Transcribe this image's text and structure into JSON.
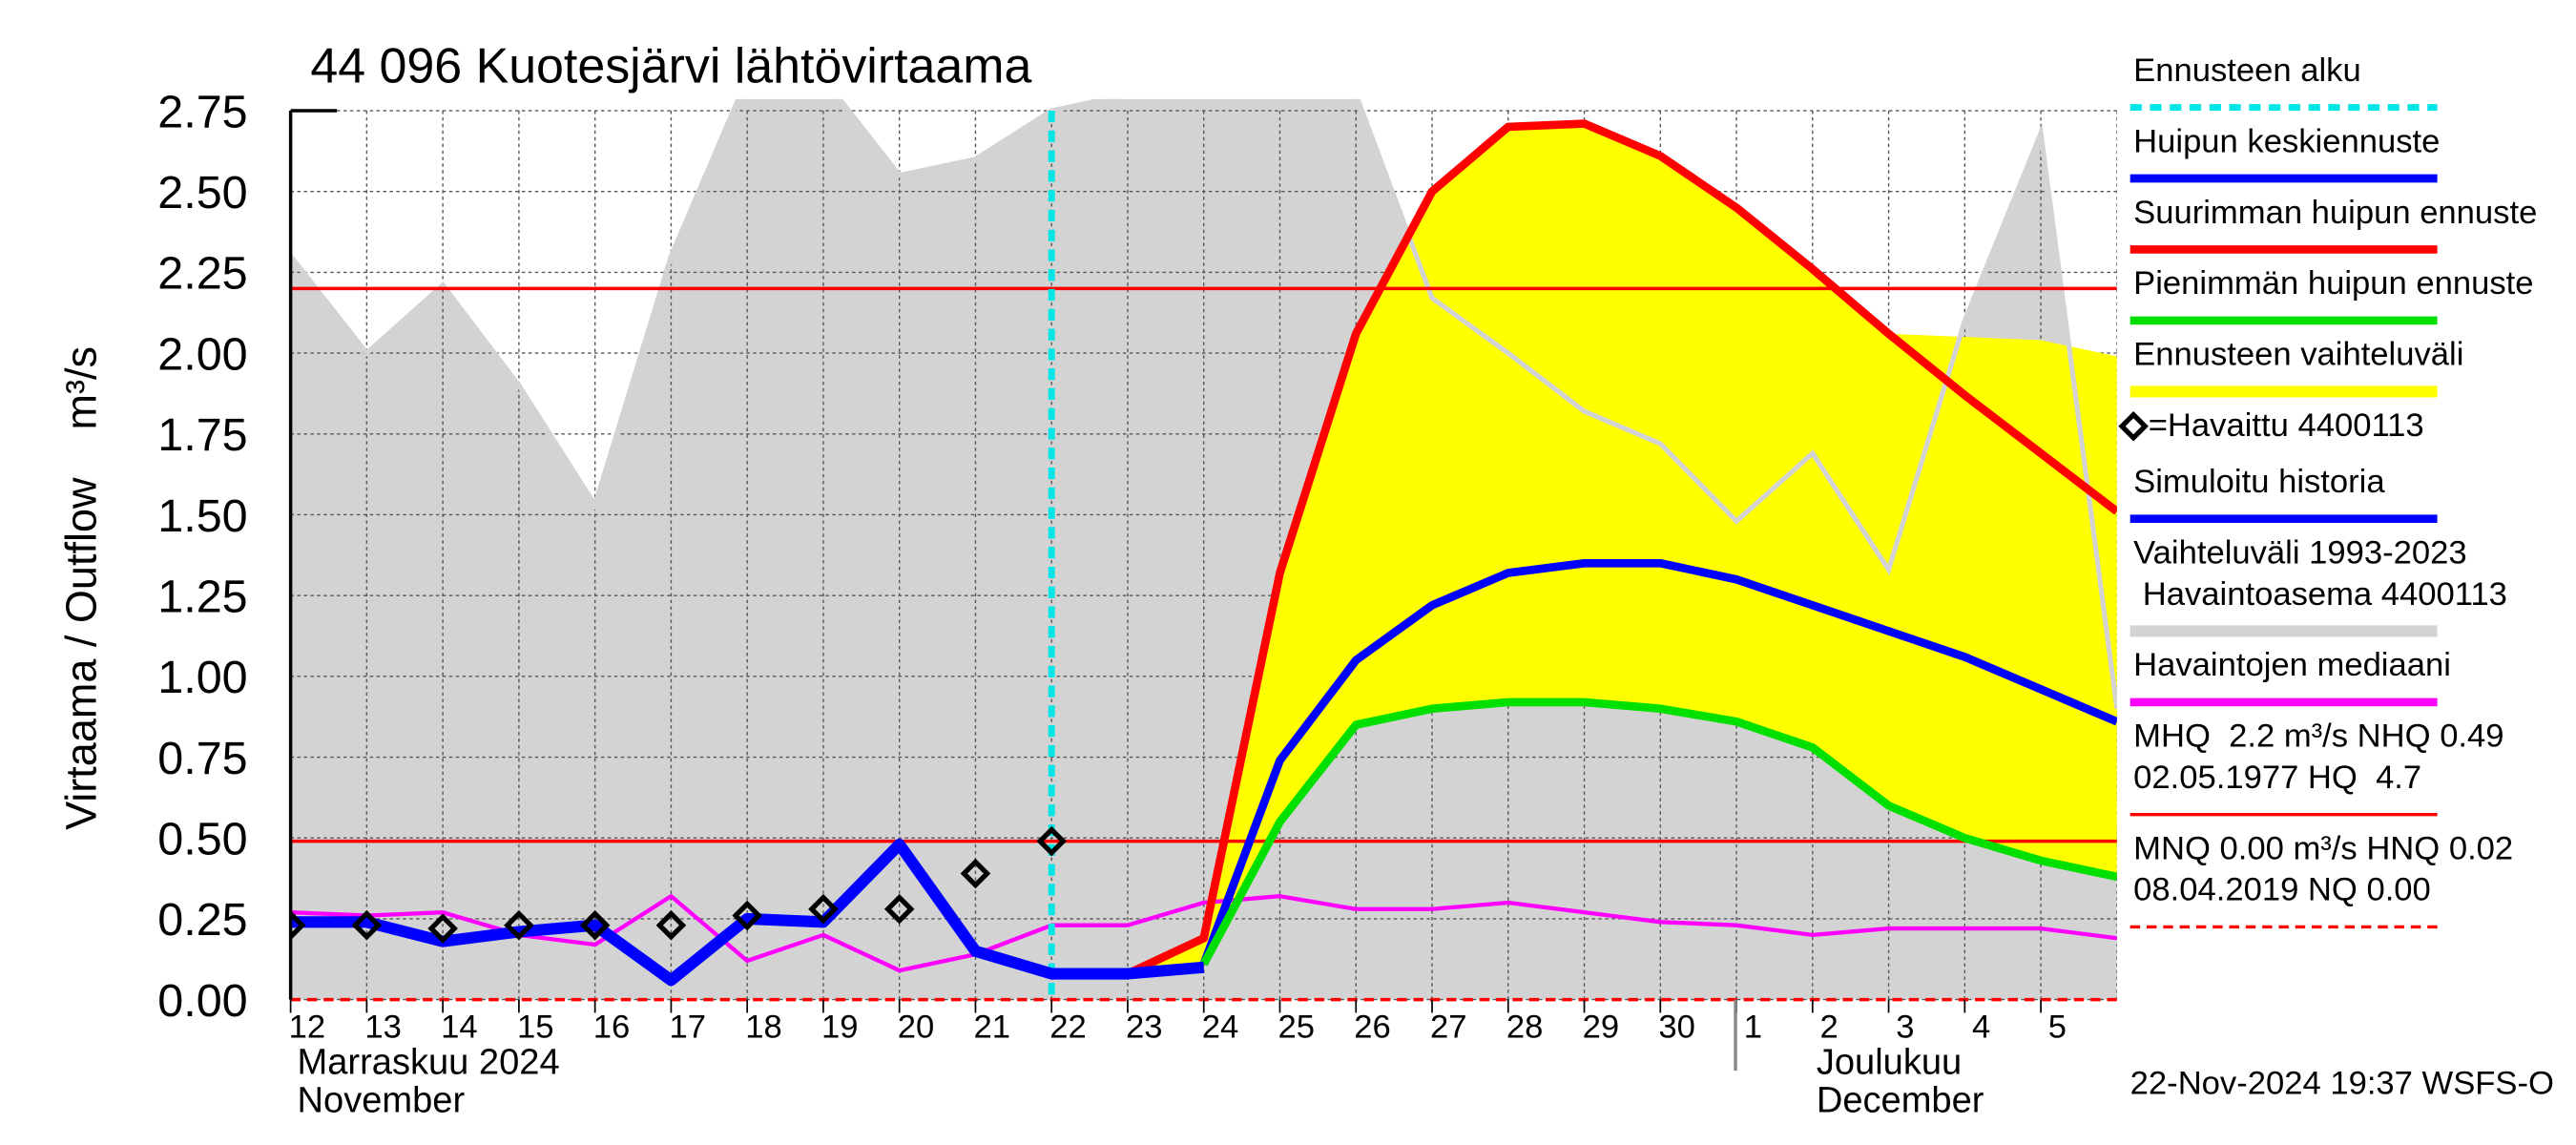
{
  "chart_data": {
    "type": "hydrograph",
    "title": "44 096 Kuotesjärvi lähtövirtaama",
    "y_label": "Virtaama / Outflow    m³/s",
    "ylim": [
      0,
      2.75
    ],
    "yticks": [
      {
        "value": 0,
        "label": "0.00"
      },
      {
        "value": 0.25,
        "label": "0.25"
      },
      {
        "value": 0.5,
        "label": "0.50"
      },
      {
        "value": 0.75,
        "label": "0.75"
      },
      {
        "value": 1,
        "label": "1.00"
      },
      {
        "value": 1.25,
        "label": "1.25"
      },
      {
        "value": 1.5,
        "label": "1.50"
      },
      {
        "value": 1.75,
        "label": "1.75"
      },
      {
        "value": 2,
        "label": "2.00"
      },
      {
        "value": 2.25,
        "label": "2.25"
      },
      {
        "value": 2.5,
        "label": "2.50"
      },
      {
        "value": 2.75,
        "label": "2.75"
      }
    ],
    "xlim": [
      0,
      24
    ],
    "xticks": [
      {
        "value": 0,
        "label": "12"
      },
      {
        "value": 1,
        "label": "13"
      },
      {
        "value": 2,
        "label": "14"
      },
      {
        "value": 3,
        "label": "15"
      },
      {
        "value": 4,
        "label": "16"
      },
      {
        "value": 5,
        "label": "17"
      },
      {
        "value": 6,
        "label": "18"
      },
      {
        "value": 7,
        "label": "19"
      },
      {
        "value": 8,
        "label": "20"
      },
      {
        "value": 9,
        "label": "21"
      },
      {
        "value": 10,
        "label": "22"
      },
      {
        "value": 11,
        "label": "23"
      },
      {
        "value": 12,
        "label": "24"
      },
      {
        "value": 13,
        "label": "25"
      },
      {
        "value": 14,
        "label": "26"
      },
      {
        "value": 15,
        "label": "27"
      },
      {
        "value": 16,
        "label": "28"
      },
      {
        "value": 17,
        "label": "29"
      },
      {
        "value": 18,
        "label": "30"
      },
      {
        "value": 19,
        "label": "1"
      },
      {
        "value": 20,
        "label": "2"
      },
      {
        "value": 21,
        "label": "3"
      },
      {
        "value": 22,
        "label": "4"
      },
      {
        "value": 23,
        "label": "5"
      }
    ],
    "grid": true,
    "months": [
      [
        "Marraskuu 2024",
        "November"
      ],
      [
        "Joulukuu",
        "December"
      ]
    ],
    "footer": "22-Nov-2024 19:37 WSFS-O",
    "series": [
      {
        "name": "Ennusteen alku",
        "color": "#00e5e5",
        "style": "vline",
        "x": 10
      },
      {
        "name": "Huipun keskiennuste",
        "color": "#0000ff",
        "style": "line",
        "width": 5,
        "x": [
          12,
          13,
          14,
          15,
          16,
          17,
          18,
          19,
          20,
          21,
          22,
          23,
          24
        ],
        "values": [
          0.11,
          0.74,
          1.05,
          1.22,
          1.32,
          1.35,
          1.35,
          1.3,
          1.22,
          1.14,
          1.06,
          0.96,
          0.86
        ]
      },
      {
        "name": "Suurimman huipun ennuste",
        "color": "#ff0000",
        "style": "line",
        "width": 5,
        "x": [
          11,
          12,
          13,
          14,
          15,
          16,
          17,
          18,
          19,
          20,
          21,
          22,
          23,
          24
        ],
        "values": [
          0.08,
          0.19,
          1.32,
          2.06,
          2.5,
          2.7,
          2.71,
          2.61,
          2.45,
          2.26,
          2.06,
          1.87,
          1.69,
          1.51
        ]
      },
      {
        "name": "Pienimmän huipun ennuste",
        "color": "#00e000",
        "style": "line",
        "width": 5,
        "x": [
          12,
          13,
          14,
          15,
          16,
          17,
          18,
          19,
          20,
          21,
          22,
          23,
          24
        ],
        "values": [
          0.11,
          0.55,
          0.85,
          0.9,
          0.92,
          0.92,
          0.9,
          0.86,
          0.78,
          0.6,
          0.5,
          0.43,
          0.38
        ]
      },
      {
        "name": "Ennusteen vaihteluväli",
        "color": "#ffff00",
        "style": "range",
        "x": [
          11,
          12,
          13,
          14,
          15,
          16,
          17,
          18,
          19,
          20,
          21,
          22,
          23,
          24
        ],
        "upper": [
          0.08,
          0.19,
          1.32,
          2.06,
          2.5,
          2.7,
          2.71,
          2.61,
          2.45,
          2.26,
          2.06,
          2.05,
          2.04,
          1.99
        ],
        "lower": [
          0.08,
          0.11,
          0.55,
          0.85,
          0.9,
          0.92,
          0.92,
          0.9,
          0.86,
          0.78,
          0.6,
          0.5,
          0.43,
          0.38
        ]
      },
      {
        "name": "=Havaittu 4400113",
        "color": "#000000",
        "style": "markers",
        "x": [
          0,
          1,
          2,
          3,
          4,
          5,
          6,
          7,
          8,
          9,
          10
        ],
        "values": [
          0.23,
          0.23,
          0.22,
          0.23,
          0.23,
          0.23,
          0.26,
          0.28,
          0.28,
          0.39,
          0.49
        ]
      },
      {
        "name": "Simuloitu historia",
        "color": "#0000ff",
        "style": "line",
        "width": 7,
        "x": [
          0,
          1,
          2,
          3,
          4,
          5,
          6,
          7,
          8,
          9,
          10,
          11,
          12
        ],
        "values": [
          0.24,
          0.24,
          0.18,
          0.21,
          0.23,
          0.06,
          0.25,
          0.24,
          0.48,
          0.15,
          0.08,
          0.08,
          0.1
        ]
      },
      {
        "name": [
          "Vaihteluväli 1993-2023",
          " Havaintoasema 4400113"
        ],
        "color": "#d3d3d3",
        "style": "area",
        "x": [
          0,
          1,
          2,
          3,
          4,
          5,
          6,
          7,
          8,
          9,
          10,
          11,
          12,
          13,
          14,
          15,
          16,
          17,
          18,
          19,
          20,
          21,
          22,
          23,
          24
        ],
        "values": [
          2.3,
          2.0,
          2.21,
          1.9,
          1.53,
          2.3,
          2.85,
          2.85,
          2.55,
          2.6,
          2.75,
          2.8,
          2.8,
          2.8,
          2.8,
          2.17,
          2.0,
          1.82,
          1.72,
          1.48,
          1.69,
          1.33,
          2.1,
          2.68,
          0.9
        ]
      },
      {
        "name": "Havaintojen mediaani",
        "color": "#ff00ff",
        "style": "line",
        "width": 2.5,
        "x": [
          0,
          1,
          2,
          3,
          4,
          5,
          6,
          7,
          8,
          9,
          10,
          11,
          12,
          13,
          14,
          15,
          16,
          17,
          18,
          19,
          20,
          21,
          22,
          23,
          24
        ],
        "values": [
          0.27,
          0.26,
          0.27,
          0.2,
          0.17,
          0.32,
          0.12,
          0.2,
          0.09,
          0.14,
          0.23,
          0.23,
          0.3,
          0.32,
          0.28,
          0.28,
          0.3,
          0.27,
          0.24,
          0.23,
          0.2,
          0.22,
          0.22,
          0.22,
          0.19
        ]
      },
      {
        "name": [
          "MHQ  2.2 m³/s NHQ 0.49",
          "02.05.1977 HQ  4.7"
        ],
        "color": "#ff0000",
        "style": "hlines",
        "values": [
          2.2,
          0.49
        ]
      },
      {
        "name": [
          "MNQ 0.00 m³/s HNQ 0.02",
          "08.04.2019 NQ 0.00"
        ],
        "color": "#ff0000",
        "style": "hlines",
        "dashed": true,
        "values": [
          0
        ]
      }
    ]
  }
}
